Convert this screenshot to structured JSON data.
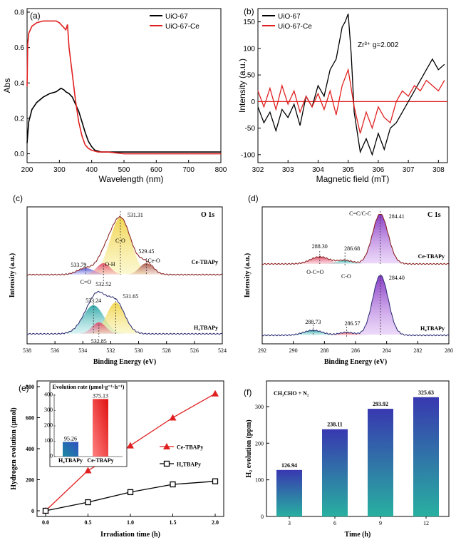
{
  "colors": {
    "black": "#000000",
    "red": "#e02020",
    "blue": "#2f2fbf",
    "ce_red": "#e03030",
    "teal": "#2a9a9a",
    "bar_top": "#3a3aa8",
    "bar_bottom": "#2aa898",
    "panel_f_bg": "#ffffff"
  },
  "chart_data": [
    {
      "panel": "(a)",
      "type": "line",
      "xlabel": "Wavelength (nm)",
      "ylabel": "Abs",
      "xlim": [
        200,
        800
      ],
      "ylim": [
        -0.05,
        0.82
      ],
      "xticks": [
        "200",
        "300",
        "400",
        "500",
        "600",
        "700",
        "800"
      ],
      "yticks": [
        "0.0",
        "0.2",
        "0.4",
        "0.6",
        "0.8"
      ],
      "series": [
        {
          "name": "UiO-67",
          "color": "#000000",
          "x": [
            200,
            205,
            215,
            230,
            250,
            270,
            290,
            305,
            315,
            320,
            330,
            340,
            350,
            360,
            370,
            380,
            390,
            400,
            410,
            430,
            450,
            500,
            600,
            700,
            800
          ],
          "y": [
            0.06,
            0.18,
            0.25,
            0.29,
            0.32,
            0.34,
            0.35,
            0.37,
            0.36,
            0.35,
            0.34,
            0.32,
            0.28,
            0.24,
            0.18,
            0.12,
            0.07,
            0.04,
            0.02,
            0.01,
            0.01,
            0.01,
            0.01,
            0.01,
            0.01
          ]
        },
        {
          "name": "UiO-67-Ce",
          "color": "#e02020",
          "x": [
            200,
            202,
            205,
            215,
            230,
            250,
            270,
            290,
            300,
            310,
            320,
            325,
            330,
            340,
            350,
            360,
            370,
            380,
            390,
            400,
            420,
            450,
            500,
            600,
            700,
            800
          ],
          "y": [
            0.38,
            0.62,
            0.68,
            0.72,
            0.74,
            0.75,
            0.75,
            0.75,
            0.74,
            0.72,
            0.7,
            0.73,
            0.6,
            0.45,
            0.3,
            0.18,
            0.1,
            0.05,
            0.03,
            0.02,
            0.01,
            0.01,
            0.0,
            0.0,
            0.0,
            0.0
          ]
        }
      ]
    },
    {
      "panel": "(b)",
      "type": "line",
      "xlabel": "Magnetic field (mT)",
      "ylabel": "Intensity (a.u.)",
      "annotation": "Zr³⁺ g=2.002",
      "xlim": [
        302,
        308.3
      ],
      "ylim": [
        -115,
        175
      ],
      "xticks": [
        "302",
        "303",
        "304",
        "305",
        "306",
        "307",
        "308"
      ],
      "yticks": [
        "-100",
        "-50",
        "0",
        "50",
        "100",
        "150"
      ],
      "series": [
        {
          "name": "UiO-67",
          "color": "#000000",
          "x": [
            302,
            302.2,
            302.4,
            302.6,
            302.8,
            303,
            303.2,
            303.4,
            303.6,
            303.8,
            304,
            304.2,
            304.4,
            304.6,
            304.8,
            304.9,
            305,
            305.1,
            305.2,
            305.4,
            305.6,
            305.8,
            306,
            306.2,
            306.4,
            306.6,
            306.8,
            307,
            307.2,
            307.4,
            307.6,
            307.8,
            308,
            308.2
          ],
          "y": [
            -10,
            -40,
            -20,
            -55,
            -15,
            -30,
            -5,
            -45,
            10,
            -10,
            30,
            10,
            60,
            80,
            140,
            150,
            165,
            90,
            -20,
            -95,
            -70,
            -100,
            -60,
            -90,
            -50,
            -40,
            -20,
            0,
            20,
            40,
            60,
            80,
            60,
            70
          ]
        },
        {
          "name": "UiO-67-Ce",
          "color": "#e02020",
          "x": [
            302,
            302.2,
            302.4,
            302.6,
            302.8,
            303,
            303.2,
            303.4,
            303.6,
            303.8,
            304,
            304.2,
            304.4,
            304.6,
            304.8,
            305,
            305.2,
            305.4,
            305.6,
            305.8,
            306,
            306.2,
            306.4,
            306.6,
            306.8,
            307,
            307.2,
            307.4,
            307.6,
            307.8,
            308,
            308.2
          ],
          "y": [
            20,
            -10,
            25,
            -15,
            30,
            -5,
            20,
            -20,
            10,
            -10,
            15,
            -15,
            20,
            -25,
            30,
            60,
            -10,
            -60,
            -20,
            -50,
            -10,
            -30,
            -40,
            0,
            20,
            10,
            30,
            20,
            40,
            30,
            20,
            40
          ]
        }
      ]
    },
    {
      "panel": "(c)",
      "type": "line",
      "title": "O 1s",
      "xlabel": "Binding Energy (eV)",
      "ylabel": "Intensity (a.u.)",
      "xlim": [
        538,
        524
      ],
      "xticks": [
        "538",
        "536",
        "534",
        "532",
        "530",
        "528",
        "526",
        "524"
      ],
      "upper_label": "Ce-TBAPy",
      "lower_label": "H₄TBAPy",
      "peaks_upper": [
        {
          "center": "531.31",
          "name": "C-O"
        },
        {
          "center": "533.79",
          "name": "C=O"
        },
        {
          "center": "532.52",
          "name": "O-H"
        },
        {
          "center": "529.45",
          "name": "Ce-O"
        }
      ],
      "peaks_lower": [
        {
          "center": "533.24"
        },
        {
          "center": "531.65"
        },
        {
          "center": "532.85"
        }
      ]
    },
    {
      "panel": "(d)",
      "type": "line",
      "title": "C 1s",
      "xlabel": "Binding Energy (eV)",
      "ylabel": "Intensity (a.u.)",
      "xlim": [
        292,
        280
      ],
      "xticks": [
        "292",
        "290",
        "288",
        "286",
        "284",
        "282",
        "280"
      ],
      "upper_label": "Ce-TBAPy",
      "lower_label": "H₄TBAPy",
      "peaks_upper": [
        {
          "center": "284.41",
          "name": "C=C/C-C"
        },
        {
          "center": "288.30",
          "name": "O-C=O"
        },
        {
          "center": "286.68",
          "name": "C-O"
        }
      ],
      "peaks_lower": [
        {
          "center": "284.40"
        },
        {
          "center": "288.73"
        },
        {
          "center": "286.57"
        }
      ]
    },
    {
      "panel": "(e)",
      "type": "line",
      "xlabel": "Irradiation time (h)",
      "ylabel": "Hydrogen evolution (μmol)",
      "xlim": [
        0,
        2
      ],
      "ylim": [
        0,
        800
      ],
      "xticks": [
        "0.0",
        "0.5",
        "1.0",
        "1.5",
        "2.0"
      ],
      "yticks": [
        "0",
        "200",
        "400",
        "600",
        "800"
      ],
      "series": [
        {
          "name": "Ce-TBAPy",
          "color": "#e02020",
          "marker": "triangle",
          "x": [
            0,
            0.5,
            1.0,
            1.5,
            2.0
          ],
          "y": [
            0,
            260,
            420,
            600,
            755
          ]
        },
        {
          "name": "H₄TBAPy",
          "color": "#000000",
          "marker": "square",
          "x": [
            0,
            0.5,
            1.0,
            1.5,
            2.0
          ],
          "y": [
            0,
            55,
            120,
            170,
            190
          ]
        }
      ],
      "inset": {
        "title": "Evolution rate (μmol·g⁻¹·h⁻¹)",
        "categories": [
          "H₄TBAPy",
          "Ce-TBAPy"
        ],
        "values": [
          95.26,
          375.13
        ],
        "value_labels": [
          "95.26",
          "375.13"
        ],
        "ylim": [
          0,
          400
        ],
        "yticks": [
          "0",
          "100",
          "200",
          "300",
          "400"
        ]
      }
    },
    {
      "panel": "(f)",
      "type": "bar",
      "annotation": "CH₃CHO + N₂",
      "xlabel": "Time (h)",
      "ylabel": "H₂ evolution (ppm)",
      "categories": [
        "3",
        "6",
        "9",
        "12"
      ],
      "values": [
        126.94,
        238.11,
        293.92,
        325.63
      ],
      "value_labels": [
        "126.94",
        "238.11",
        "293.92",
        "325.63"
      ],
      "ylim": [
        0,
        370
      ],
      "yticks": [
        "0",
        "100",
        "200",
        "300"
      ]
    }
  ]
}
